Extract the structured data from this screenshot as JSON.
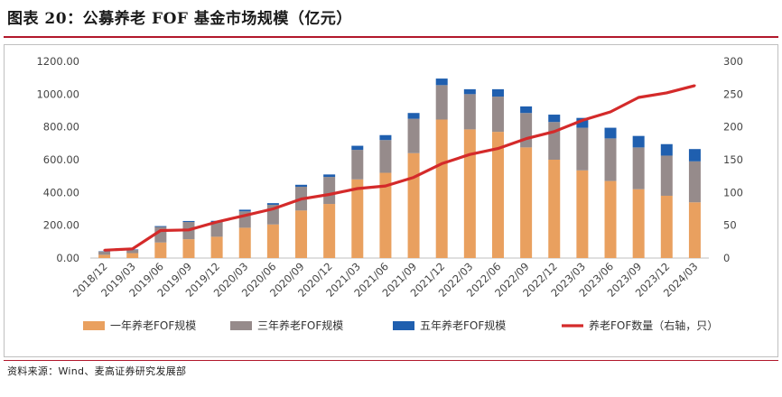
{
  "title": "图表 20：公募养老 FOF 基金市场规模（亿元）",
  "source": "资料来源：Wind、麦高证券研究发展部",
  "colors": {
    "one_year": "#e9a05f",
    "three_year": "#968b8b",
    "five_year": "#1f5faf",
    "count_line": "#d42a2a",
    "accent": "#b2182b"
  },
  "chart_data": {
    "type": "bar",
    "stacked": true,
    "title": "公募养老 FOF 基金市场规模（亿元）",
    "categories": [
      "2018/12",
      "2019/03",
      "2019/06",
      "2019/09",
      "2019/12",
      "2020/03",
      "2020/06",
      "2020/09",
      "2020/12",
      "2021/03",
      "2021/06",
      "2021/09",
      "2021/12",
      "2022/03",
      "2022/06",
      "2022/09",
      "2022/12",
      "2023/03",
      "2023/06",
      "2023/09",
      "2023/12",
      "2024/03"
    ],
    "series": [
      {
        "name": "一年养老FOF规模",
        "axis": "left",
        "values": [
          20,
          30,
          95,
          115,
          130,
          185,
          205,
          290,
          330,
          480,
          520,
          640,
          845,
          785,
          770,
          675,
          600,
          535,
          470,
          420,
          380,
          340
        ]
      },
      {
        "name": "三年养老FOF规模",
        "axis": "left",
        "values": [
          20,
          20,
          95,
          105,
          90,
          100,
          120,
          145,
          165,
          180,
          200,
          210,
          210,
          215,
          215,
          210,
          230,
          260,
          260,
          255,
          245,
          250
        ]
      },
      {
        "name": "五年养老FOF规模",
        "axis": "left",
        "values": [
          2,
          3,
          5,
          6,
          7,
          10,
          10,
          12,
          15,
          25,
          30,
          35,
          40,
          30,
          45,
          40,
          45,
          60,
          65,
          70,
          70,
          75
        ]
      },
      {
        "name": "养老FOF数量（右轴，只）",
        "axis": "right",
        "type": "line",
        "values": [
          12,
          14,
          42,
          43,
          55,
          65,
          75,
          90,
          97,
          106,
          110,
          123,
          144,
          158,
          167,
          182,
          193,
          210,
          223,
          245,
          252,
          263
        ]
      }
    ],
    "yleft": {
      "min": 0,
      "max": 1200,
      "ticks": [
        "0.00",
        "200.00",
        "400.00",
        "600.00",
        "800.00",
        "1000.00",
        "1200.00"
      ]
    },
    "yright": {
      "min": 0,
      "max": 300,
      "ticks": [
        "0",
        "50",
        "100",
        "150",
        "200",
        "250",
        "300"
      ]
    },
    "legend_position": "bottom"
  }
}
